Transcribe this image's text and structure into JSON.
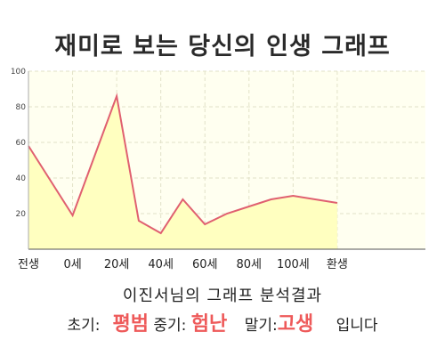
{
  "page_title": "재미로 보는 당신의 인생 그래프",
  "summary": "이진서님의 그래프 분석결과",
  "result": {
    "early_label": "초기:",
    "early_value": "평범",
    "mid_label": "중기:",
    "mid_value": "험난",
    "late_label": "말기:",
    "late_value": "고생",
    "ending": "입니다"
  },
  "colors": {
    "line": "#e06070",
    "area": "#ffffc0",
    "plot_bg": "#fffff0",
    "grid": "#e2e2c8",
    "axis_text": "#222222",
    "accent": "#ee5a5a"
  },
  "chart_data": {
    "type": "area",
    "title": "재미로 보는 당신의 인생 그래프",
    "xlabel": "",
    "ylabel": "",
    "xlim": [
      -1,
      8
    ],
    "ylim": [
      0,
      100
    ],
    "grid": true,
    "x_ticks": [
      {
        "x": -1,
        "label": "전생"
      },
      {
        "x": 0,
        "label": "0세"
      },
      {
        "x": 1,
        "label": "20세"
      },
      {
        "x": 2,
        "label": "40세"
      },
      {
        "x": 3,
        "label": "60세"
      },
      {
        "x": 4,
        "label": "80세"
      },
      {
        "x": 5,
        "label": "100세"
      },
      {
        "x": 6,
        "label": "환생"
      }
    ],
    "y_ticks": [
      20,
      40,
      60,
      80,
      100
    ],
    "series": [
      {
        "x": [
          -1,
          0,
          1,
          1.5,
          2,
          2.5,
          3,
          3.5,
          4,
          4.5,
          5,
          6
        ],
        "y": [
          58,
          19,
          86,
          16,
          9,
          28,
          14,
          20,
          24,
          28,
          30,
          26
        ]
      }
    ]
  }
}
